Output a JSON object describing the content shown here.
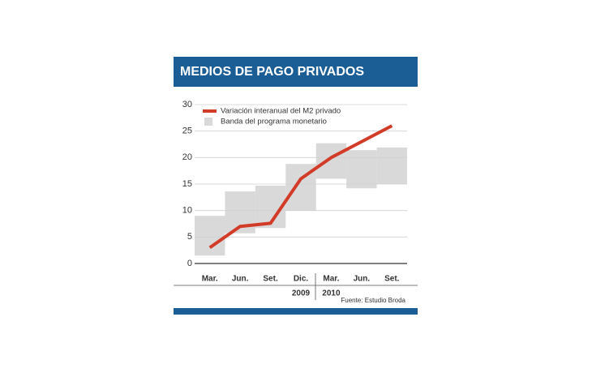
{
  "chart_data": {
    "type": "line",
    "title": "MEDIOS DE PAGO PRIVADOS",
    "categories": [
      "Mar.",
      "Jun.",
      "Set.",
      "Dic.",
      "Mar.",
      "Jun.",
      "Set."
    ],
    "year_labels": [
      null,
      null,
      null,
      "2009",
      "2010",
      null,
      null
    ],
    "series": [
      {
        "name": "Variación interanual del M2 privado",
        "color": "#d23b27",
        "values": [
          3,
          7,
          7.6,
          16,
          20,
          23,
          26
        ]
      }
    ],
    "band": {
      "name": "Banda del programa monetario",
      "color": "#d9d9d9",
      "low": [
        1.5,
        5.7,
        6.7,
        10,
        16,
        14.2,
        15
      ],
      "high": [
        9,
        13.6,
        14.7,
        18.8,
        22.7,
        21.4,
        21.9
      ]
    },
    "ylim": [
      0,
      30
    ],
    "yticks": [
      0,
      5,
      10,
      15,
      20,
      25,
      30
    ],
    "grid": true,
    "source": "Fuente: Estudio Broda"
  }
}
